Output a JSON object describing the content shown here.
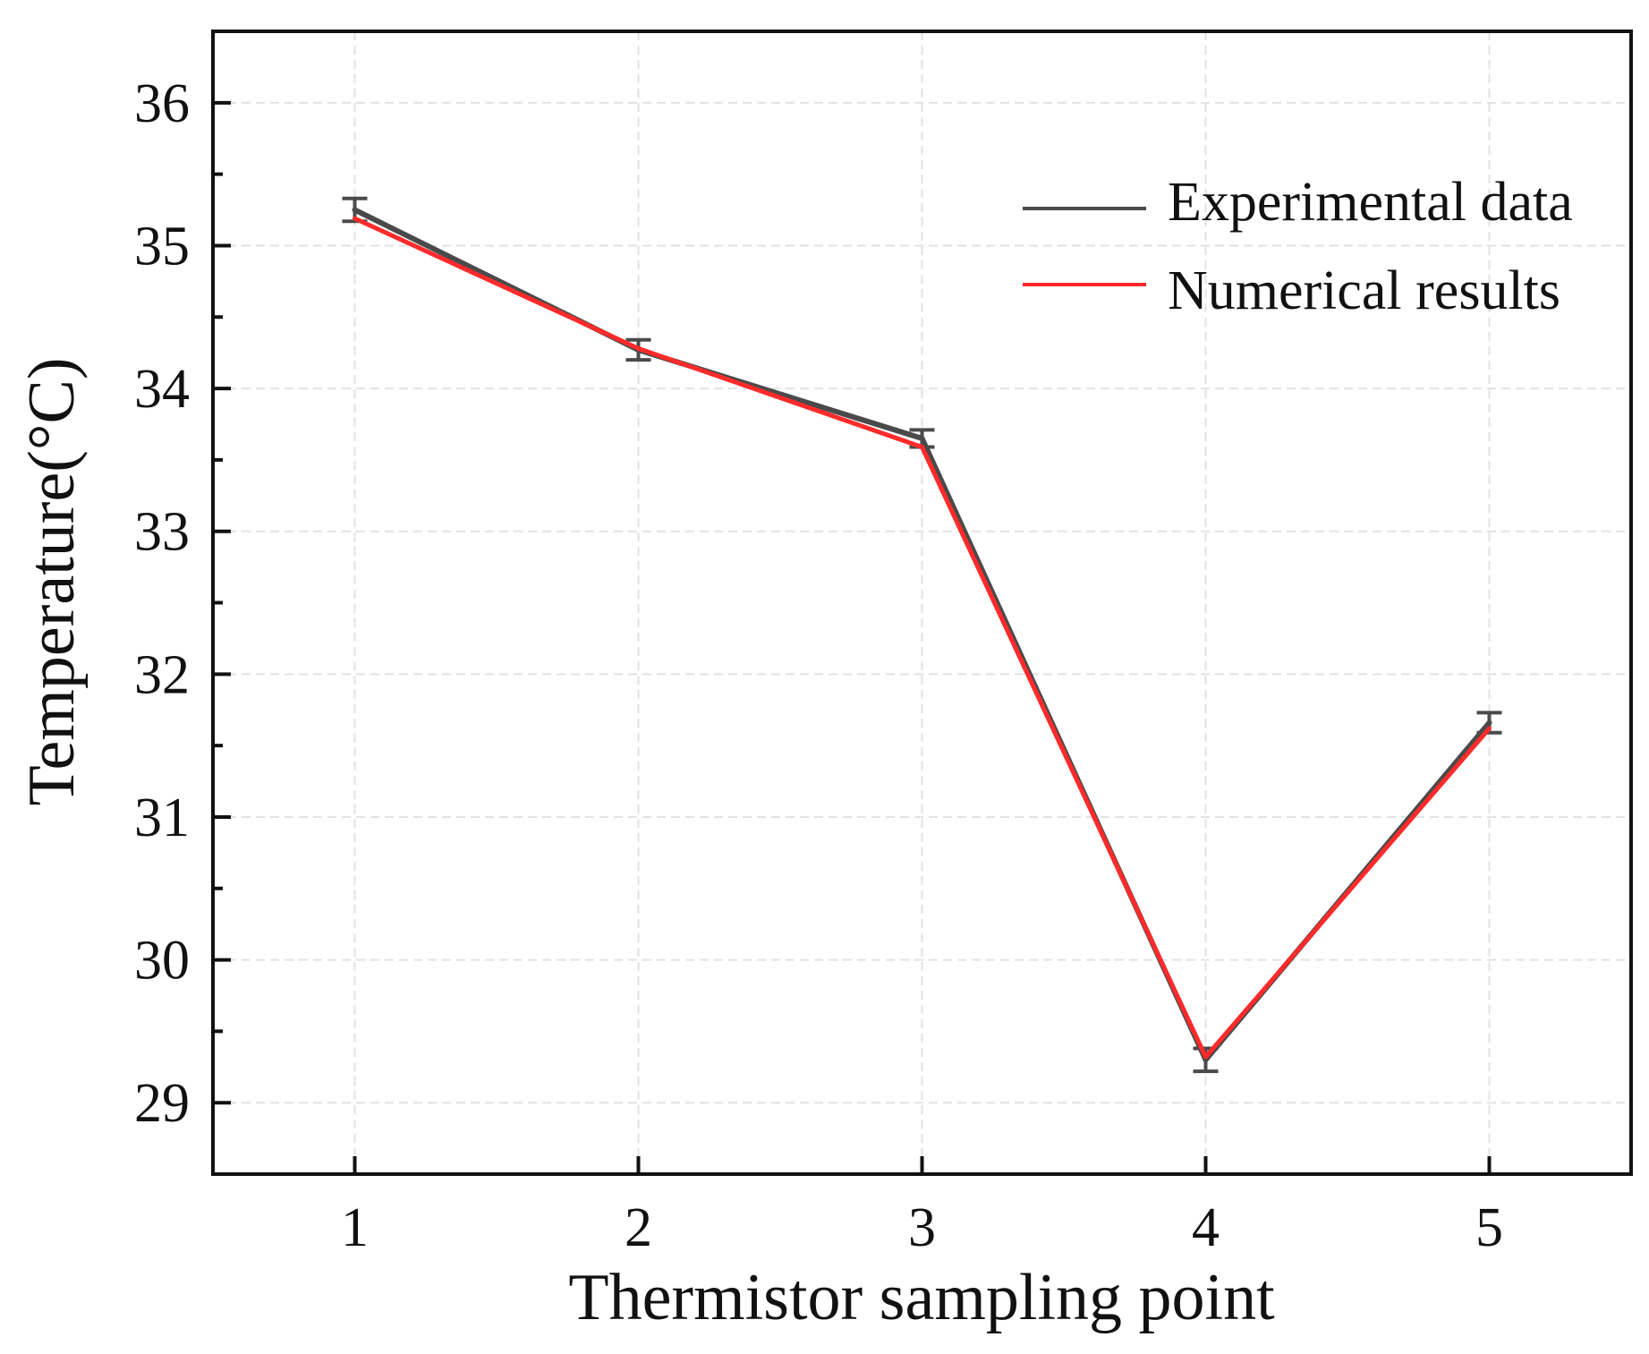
{
  "chart_data": {
    "type": "line",
    "title": "",
    "xlabel": "Thermistor sampling point",
    "ylabel": "Temperature(°C)",
    "x": [
      1,
      2,
      3,
      4,
      5
    ],
    "x_tick_labels": [
      "1",
      "2",
      "3",
      "4",
      "5"
    ],
    "xlim": [
      0.5,
      5.5
    ],
    "ylim": [
      28.5,
      36.5
    ],
    "y_ticks": [
      29,
      30,
      31,
      32,
      33,
      34,
      35,
      36
    ],
    "y_tick_labels": [
      "29",
      "30",
      "31",
      "32",
      "33",
      "34",
      "35",
      "36"
    ],
    "grid": true,
    "legend_position": "top-right",
    "series": [
      {
        "name": "Experimental data",
        "color": "#4a4a4a",
        "values": [
          35.25,
          34.27,
          33.65,
          29.3,
          31.66
        ],
        "error": [
          0.08,
          0.07,
          0.06,
          0.08,
          0.07
        ]
      },
      {
        "name": "Numerical results",
        "color": "#ff2a2a",
        "values": [
          35.19,
          34.28,
          33.59,
          29.32,
          31.62
        ]
      }
    ]
  }
}
